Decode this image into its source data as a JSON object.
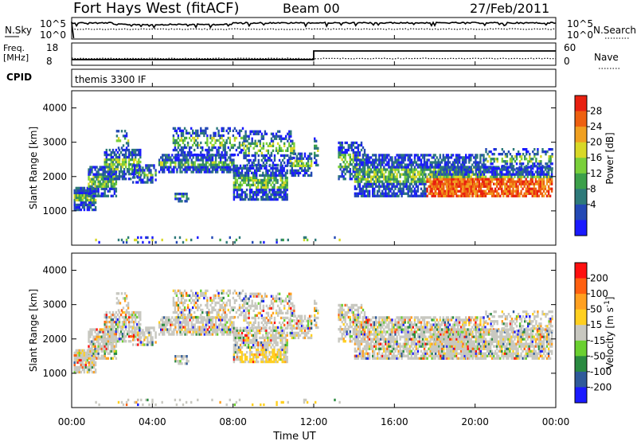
{
  "header": {
    "station": "Fort Hays West (fitACF)",
    "beam": "Beam 00",
    "date": "27/Feb/2011"
  },
  "panels": {
    "noise": {
      "left_label": "N.Sky",
      "right_label": "N.Search",
      "left_ticks": [
        "10^5",
        "10^0"
      ],
      "right_ticks": [
        "10^5",
        "10^0"
      ]
    },
    "freq": {
      "left_label_top": "Freq.",
      "left_label_bottom": "[MHz]",
      "right_label": "Nave",
      "left_ticks": [
        "18",
        "8"
      ],
      "right_ticks": [
        "60",
        "0"
      ]
    },
    "cpid": {
      "label": "CPID",
      "text": "themis 3300 IF"
    }
  },
  "colorbars": {
    "power": {
      "label": "Power [dB]",
      "ticks": [
        "28",
        "24",
        "20",
        "16",
        "12",
        "8",
        "4"
      ],
      "colors": [
        "#1a1aff",
        "#2449b5",
        "#2e7a7a",
        "#3ca04a",
        "#7ad03a",
        "#d8d826",
        "#f0a020",
        "#ee6010",
        "#e82010"
      ]
    },
    "velocity": {
      "label": "Velocity [m s-1]",
      "label_main": "Velocity [m s",
      "label_sup": "-1",
      "label_tail": "]",
      "ticks": [
        "200",
        "100",
        "50",
        "15",
        "-15",
        "-50",
        "-100",
        "-200"
      ],
      "colors": [
        "#1a1aff",
        "#2f5a9a",
        "#2a8a40",
        "#6ad030",
        "#c8c8c0",
        "#ffd020",
        "#ffa020",
        "#ff6010",
        "#ff1010"
      ]
    }
  },
  "chart_data": [
    {
      "type": "line",
      "title": "N.Sky / N.Search",
      "x": [
        "00:00",
        "04:00",
        "08:00",
        "12:00",
        "16:00",
        "20:00",
        "00:00"
      ],
      "series": [
        {
          "name": "N.Sky",
          "values_note": "log scale 10^0 - 10^5",
          "level": "near 10^5 throughout"
        },
        {
          "name": "N.Search",
          "level": "near 10^2, dotted"
        }
      ]
    },
    {
      "type": "line",
      "title": "Freq. [MHz] / Nave",
      "series": [
        {
          "name": "Freq.",
          "x": [
            "00:00",
            "12:00",
            "12:00",
            "24:00"
          ],
          "values": [
            10.5,
            10.5,
            14.8,
            14.8
          ]
        },
        {
          "name": "Nave",
          "values_note": "dotted, scale 0-60"
        }
      ],
      "left_ylim": [
        8,
        18
      ],
      "right_ylim": [
        0,
        60
      ]
    },
    {
      "type": "heatmap",
      "title": "Power [dB]",
      "xlabel": "Time UT",
      "ylabel": "Slant Range [km]",
      "xlim_hours": [
        0,
        24
      ],
      "ylim_km": [
        0,
        4500
      ],
      "xticks": [
        "00:00",
        "04:00",
        "08:00",
        "12:00",
        "16:00",
        "20:00",
        "00:00"
      ],
      "yticks": [
        1000,
        2000,
        3000,
        4000
      ],
      "colorbar_ticks": [
        4,
        8,
        12,
        16,
        20,
        24,
        28
      ]
    },
    {
      "type": "heatmap",
      "title": "Velocity [m s-1]",
      "xlabel": "Time UT",
      "ylabel": "Slant Range [km]",
      "xlim_hours": [
        0,
        24
      ],
      "ylim_km": [
        0,
        4500
      ],
      "xticks": [
        "00:00",
        "04:00",
        "08:00",
        "12:00",
        "16:00",
        "20:00",
        "00:00"
      ],
      "yticks": [
        1000,
        2000,
        3000,
        4000
      ],
      "colorbar_ticks": [
        200,
        100,
        50,
        15,
        -15,
        -50,
        -100,
        -200
      ]
    }
  ],
  "x_axis": {
    "ticks": [
      "00:00",
      "04:00",
      "08:00",
      "12:00",
      "16:00",
      "20:00",
      "00:00"
    ],
    "label": "Time UT"
  },
  "y_axis": {
    "label": "Slant Range [km]",
    "ticks": [
      "1000",
      "2000",
      "3000",
      "4000"
    ]
  }
}
